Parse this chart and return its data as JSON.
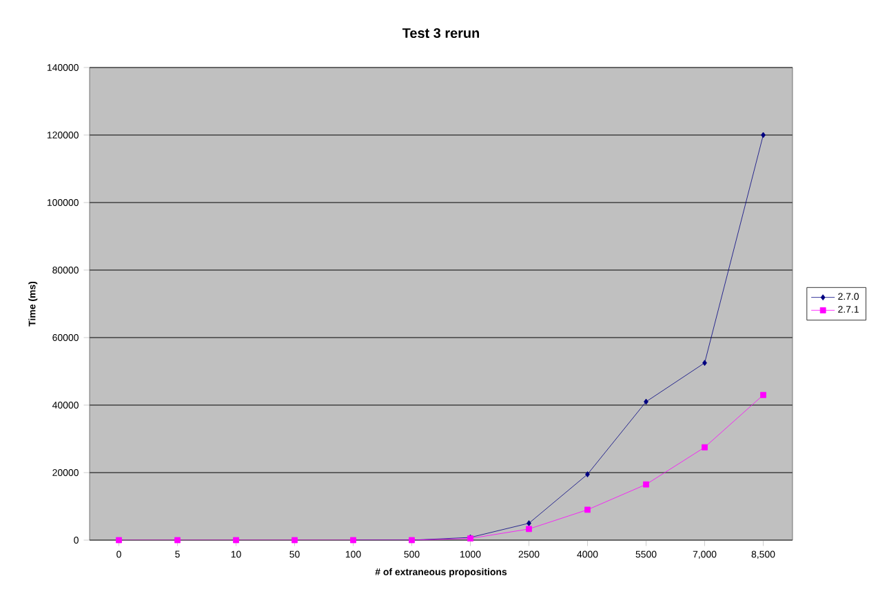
{
  "chart_data": {
    "type": "line",
    "title": "Test 3 rerun",
    "xlabel": "# of extraneous propositions",
    "ylabel": "Time (ms)",
    "categories": [
      "0",
      "5",
      "10",
      "50",
      "100",
      "500",
      "1000",
      "2500",
      "4000",
      "5500",
      "7,000",
      "8,500"
    ],
    "series": [
      {
        "name": "2.7.0",
        "color": "#000080",
        "marker": "diamond",
        "values": [
          null,
          null,
          null,
          null,
          0,
          0,
          800,
          5000,
          19500,
          41000,
          52500,
          120000
        ]
      },
      {
        "name": "2.7.1",
        "color": "#ff00ff",
        "marker": "square",
        "values": [
          0,
          0,
          0,
          0,
          0,
          0,
          500,
          3300,
          9000,
          16500,
          27500,
          43000
        ]
      }
    ],
    "ylim": [
      0,
      140000
    ],
    "yticks": [
      0,
      20000,
      40000,
      60000,
      80000,
      100000,
      120000,
      140000
    ],
    "grid": "y",
    "legend": "right",
    "line_style": "solid"
  }
}
